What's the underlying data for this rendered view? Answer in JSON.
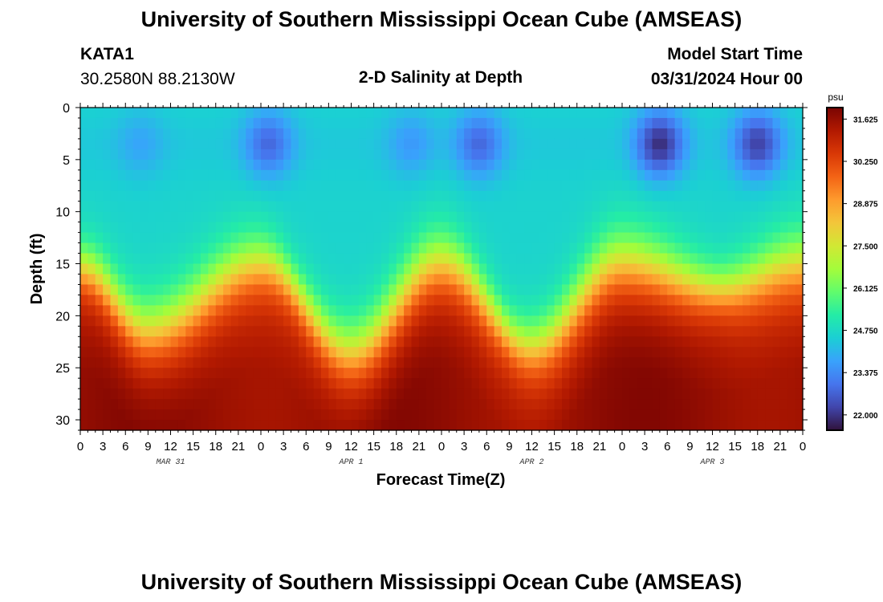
{
  "page": {
    "title": "University of Southern Mississippi Ocean Cube (AMSEAS)",
    "title_repeat": "University of Southern Mississippi Ocean Cube (AMSEAS)"
  },
  "header": {
    "station": "KATA1",
    "coords": "30.2580N  88.2130W",
    "plot_title": "2-D Salinity at Depth",
    "model_start_label": "Model Start Time",
    "model_start_value": "03/31/2024 Hour 00"
  },
  "chart_data": {
    "type": "heatmap",
    "title": "2-D Salinity at Depth",
    "xlabel": "Forecast Time(Z)",
    "ylabel": "Depth (ft)",
    "x_hours_range": [
      0,
      96
    ],
    "x_tick_labels": [
      "0",
      "3",
      "6",
      "9",
      "12",
      "15",
      "18",
      "21",
      "0",
      "3",
      "6",
      "9",
      "12",
      "15",
      "18",
      "21",
      "0",
      "3",
      "6",
      "9",
      "12",
      "15",
      "18",
      "21",
      "0",
      "3",
      "6",
      "9",
      "12",
      "15",
      "18",
      "21",
      "0"
    ],
    "date_labels": [
      {
        "label": "MAR 31",
        "hour": 12
      },
      {
        "label": "APR 1",
        "hour": 36
      },
      {
        "label": "APR 2",
        "hour": 60
      },
      {
        "label": "APR 3",
        "hour": 84
      }
    ],
    "y_range": [
      0,
      31
    ],
    "y_ticks": [
      0,
      5,
      10,
      15,
      20,
      25,
      30
    ],
    "y_tick_labels": [
      "0",
      "5",
      "10",
      "15",
      "20",
      "25",
      "30"
    ],
    "colorbar": {
      "unit": "psu",
      "min": 21.5,
      "max": 32.0,
      "tick_values": [
        31.625,
        30.25,
        28.875,
        27.5,
        26.125,
        24.75,
        23.375,
        22.0
      ],
      "tick_labels": [
        "31.625",
        "30.250",
        "28.875",
        "27.500",
        "26.125",
        "24.750",
        "23.375",
        "22.000"
      ],
      "colors": [
        "#30123b",
        "#4145ab",
        "#4675ed",
        "#39a2fc",
        "#1bcfd4",
        "#24eca6",
        "#61fc6c",
        "#a4fc3b",
        "#d1e834",
        "#f3c63a",
        "#fe9b2d",
        "#f36315",
        "#d93806",
        "#b11901",
        "#7a0402"
      ]
    },
    "surface_minima": [
      {
        "hour": 8,
        "salinity": 23.8
      },
      {
        "hour": 25,
        "salinity": 22.8
      },
      {
        "hour": 44,
        "salinity": 23.6
      },
      {
        "hour": 53,
        "salinity": 22.8
      },
      {
        "hour": 77,
        "salinity": 21.9
      },
      {
        "hour": 90,
        "salinity": 22.2
      }
    ],
    "halocline_depth_ft": [
      {
        "hour": 0,
        "depth": 15.5
      },
      {
        "hour": 9,
        "depth": 21.5
      },
      {
        "hour": 24,
        "depth": 15.0
      },
      {
        "hour": 36,
        "depth": 23.5
      },
      {
        "hour": 48,
        "depth": 15.0
      },
      {
        "hour": 60,
        "depth": 23.0
      },
      {
        "hour": 72,
        "depth": 15.0
      },
      {
        "hour": 85,
        "depth": 17.5
      },
      {
        "hour": 96,
        "depth": 15.0
      }
    ],
    "bottom_salinity": 31.3
  }
}
